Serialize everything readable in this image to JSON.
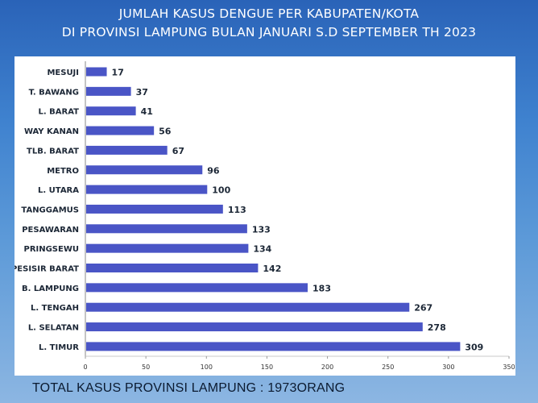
{
  "chart_data": {
    "type": "bar",
    "orientation": "horizontal",
    "title": [
      "JUMLAH KASUS DENGUE  PER KABUPATEN/KOTA",
      "DI PROVINSI LAMPUNG BULAN JANUARI S.D SEPTEMBER TH 2023"
    ],
    "categories": [
      "MESUJI",
      "T. BAWANG",
      "L. BARAT",
      "WAY KANAN",
      "TLB. BARAT",
      "METRO",
      "L. UTARA",
      "TANGGAMUS",
      "PESAWARAN",
      "PRINGSEWU",
      "PESISIR BARAT",
      "B. LAMPUNG",
      "L. TENGAH",
      "L. SELATAN",
      "L. TIMUR"
    ],
    "values": [
      17,
      37,
      41,
      56,
      67,
      96,
      100,
      113,
      133,
      134,
      142,
      183,
      267,
      278,
      309
    ],
    "xlim": [
      0,
      350
    ],
    "xticks": [
      0,
      50,
      100,
      150,
      200,
      250,
      300,
      350
    ],
    "bar_color": "#4a55c6",
    "grid": false,
    "data_labels": true
  },
  "footer": "TOTAL KASUS PROVINSI LAMPUNG : 1973ORANG"
}
